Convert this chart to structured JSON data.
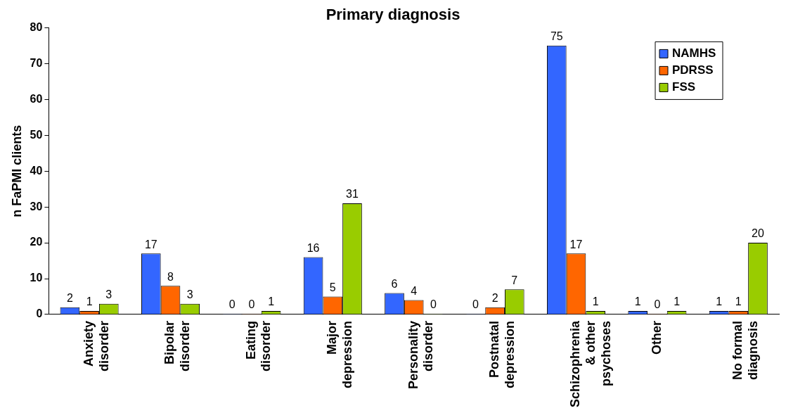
{
  "chart_data": {
    "type": "bar",
    "title": "Primary diagnosis",
    "ylabel": "n FaPMI clients",
    "categories": [
      "Anxiety disorder",
      "Bipolar disorder",
      "Eating disorder",
      "Major depression",
      "Personality disorder",
      "Postnatal depression",
      "Schizophrenia & other psychoses",
      "Other",
      "No formal diagnosis"
    ],
    "series": [
      {
        "name": "NAMHS",
        "color": "#3366ff",
        "values": [
          2,
          17,
          0,
          16,
          6,
          0,
          75,
          1,
          1
        ]
      },
      {
        "name": "PDRSS",
        "color": "#ff6600",
        "values": [
          1,
          8,
          0,
          5,
          4,
          2,
          17,
          0,
          1
        ]
      },
      {
        "name": "FSS",
        "color": "#99cc00",
        "values": [
          3,
          3,
          1,
          31,
          0,
          7,
          1,
          1,
          20
        ]
      }
    ],
    "ylim": [
      0,
      80
    ],
    "yticks": [
      0,
      10,
      20,
      30,
      40,
      50,
      60,
      70,
      80
    ],
    "grid": false,
    "legend": "top right",
    "data_labels": true
  }
}
